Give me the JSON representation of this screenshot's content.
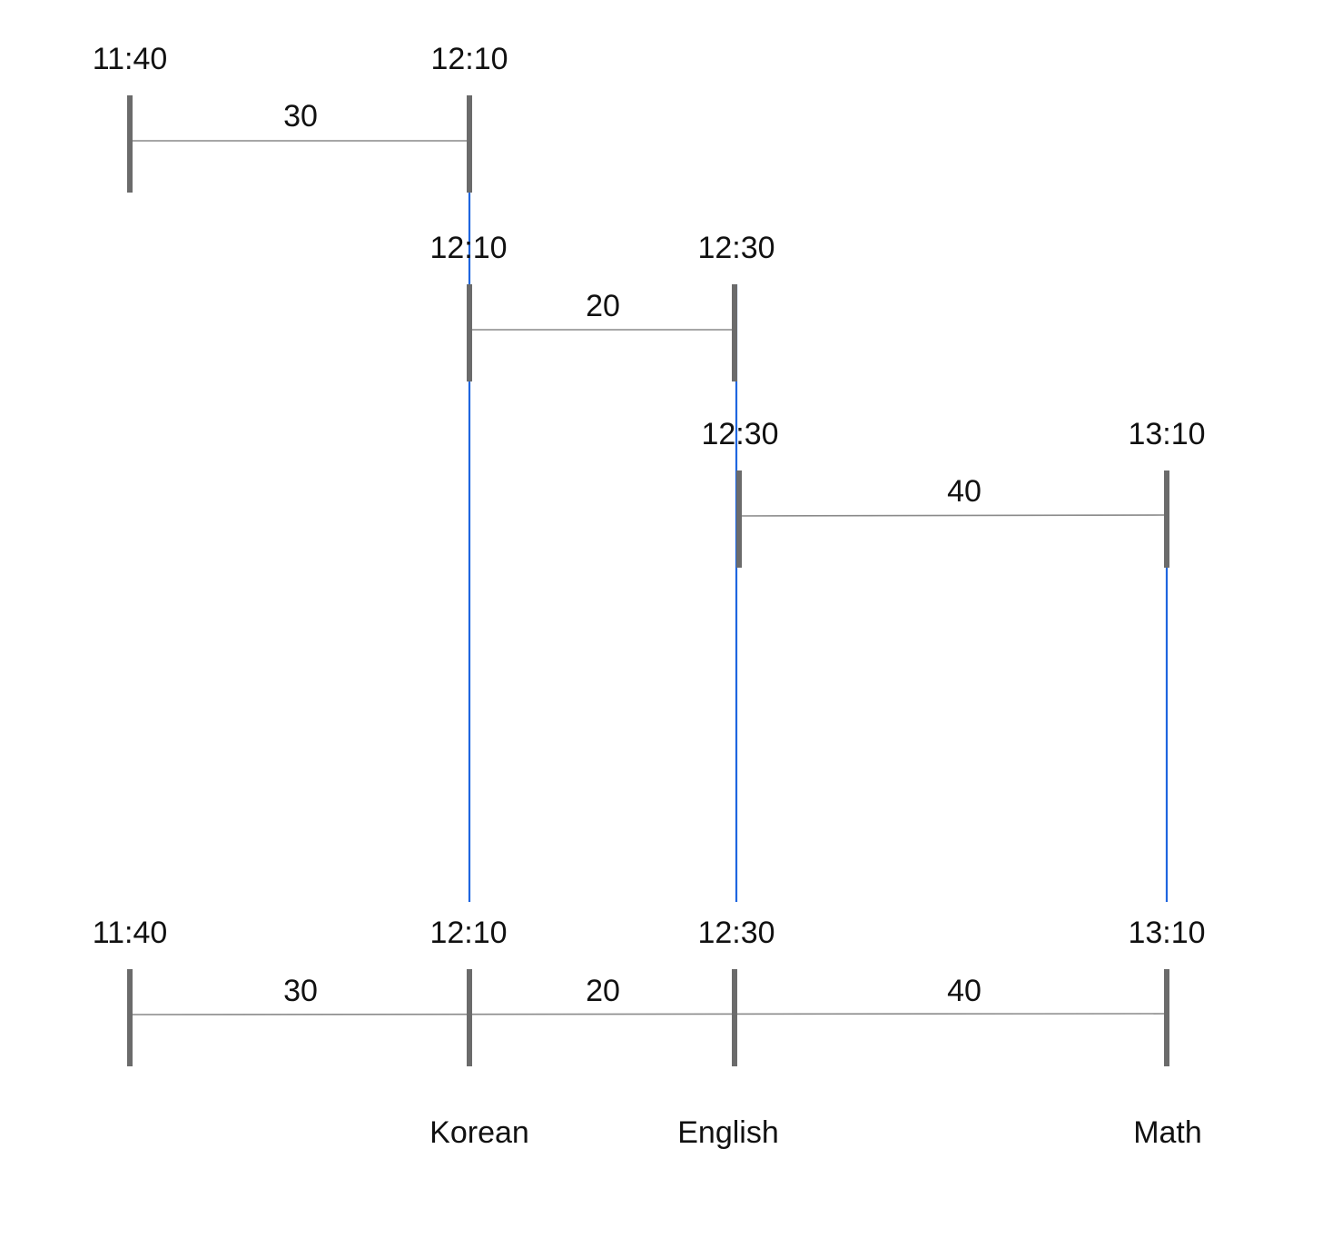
{
  "rows": [
    {
      "start": {
        "time": "11:40"
      },
      "end": {
        "time": "12:10"
      },
      "duration": "30"
    },
    {
      "start": {
        "time": "12:10"
      },
      "end": {
        "time": "12:30"
      },
      "duration": "20"
    },
    {
      "start": {
        "time": "12:30"
      },
      "end": {
        "time": "13:10"
      },
      "duration": "40"
    }
  ],
  "combined": {
    "times": [
      "11:40",
      "12:10",
      "12:30",
      "13:10"
    ],
    "durations": [
      "30",
      "20",
      "40"
    ],
    "subjects": [
      "Korean",
      "English",
      "Math"
    ]
  },
  "colors": {
    "tick": "#6b6b6b",
    "span_line": "#8a8a8a",
    "guide": "#1f66e0",
    "text": "#111111"
  }
}
